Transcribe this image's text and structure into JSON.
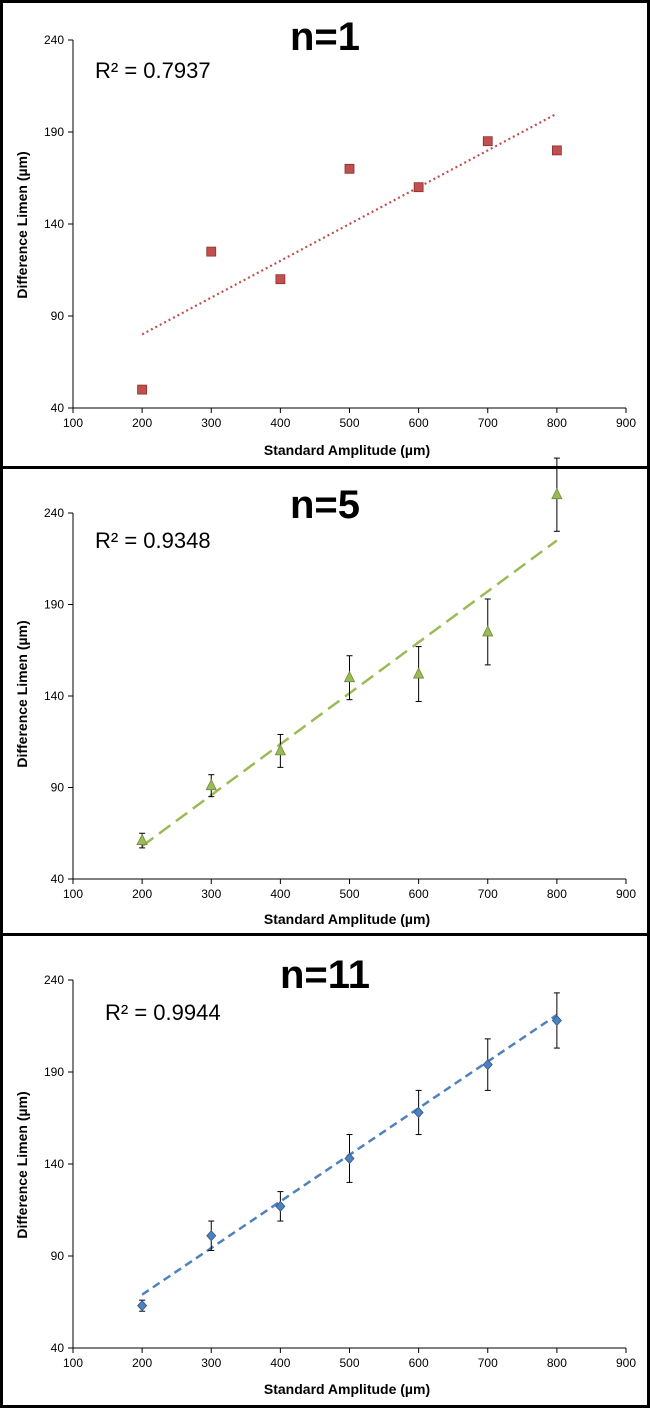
{
  "chart_data": [
    {
      "type": "scatter",
      "title": "n=1",
      "annotation": "R² = 0.7937",
      "xlabel": "Standard Amplitude (µm)",
      "ylabel": "Difference Limen (µm)",
      "xlim": [
        100,
        900
      ],
      "ylim": [
        40,
        240
      ],
      "xticks": [
        "100",
        "200",
        "300",
        "400",
        "500",
        "600",
        "700",
        "800",
        "900"
      ],
      "yticks": [
        "40",
        "90",
        "140",
        "190",
        "240"
      ],
      "series": [
        {
          "x": [
            200,
            300,
            400,
            500,
            600,
            700,
            800
          ],
          "y": [
            50,
            125,
            110,
            170,
            160,
            185,
            180
          ],
          "marker": "square",
          "color": "#c0504d",
          "trendline": {
            "style": "dotted",
            "x": [
              200,
              800
            ],
            "y": [
              80,
              200
            ],
            "color": "#c0504d"
          }
        }
      ]
    },
    {
      "type": "scatter",
      "title": "n=5",
      "annotation": "R² = 0.9348",
      "xlabel": "Standard Amplitude (µm)",
      "ylabel": "Difference Limen (µm)",
      "xlim": [
        100,
        900
      ],
      "ylim": [
        40,
        240
      ],
      "xticks": [
        "100",
        "200",
        "300",
        "400",
        "500",
        "600",
        "700",
        "800",
        "900"
      ],
      "yticks": [
        "40",
        "90",
        "140",
        "190",
        "240"
      ],
      "series": [
        {
          "x": [
            200,
            300,
            400,
            500,
            600,
            700,
            800
          ],
          "y": [
            61,
            91,
            110,
            150,
            152,
            175,
            250
          ],
          "yerr": [
            4,
            6,
            9,
            12,
            15,
            18,
            20
          ],
          "marker": "triangle",
          "color": "#9bbb59",
          "trendline": {
            "style": "long-dash",
            "x": [
              200,
              800
            ],
            "y": [
              58,
              225
            ],
            "color": "#9bbb59"
          }
        }
      ]
    },
    {
      "type": "scatter",
      "title": "n=11",
      "annotation": "R² = 0.9944",
      "xlabel": "Standard Amplitude (µm)",
      "ylabel": "Difference Limen (µm)",
      "xlim": [
        100,
        900
      ],
      "ylim": [
        40,
        240
      ],
      "xticks": [
        "100",
        "200",
        "300",
        "400",
        "500",
        "600",
        "700",
        "800",
        "900"
      ],
      "yticks": [
        "40",
        "90",
        "140",
        "190",
        "240"
      ],
      "series": [
        {
          "x": [
            200,
            300,
            400,
            500,
            600,
            700,
            800
          ],
          "y": [
            63,
            101,
            117,
            143,
            168,
            194,
            218
          ],
          "yerr": [
            3,
            8,
            8,
            13,
            12,
            14,
            15
          ],
          "marker": "diamond",
          "color": "#4f81bd",
          "trendline": {
            "style": "dashed",
            "x": [
              200,
              800
            ],
            "y": [
              69,
              221
            ],
            "color": "#4f81bd"
          }
        }
      ]
    }
  ]
}
